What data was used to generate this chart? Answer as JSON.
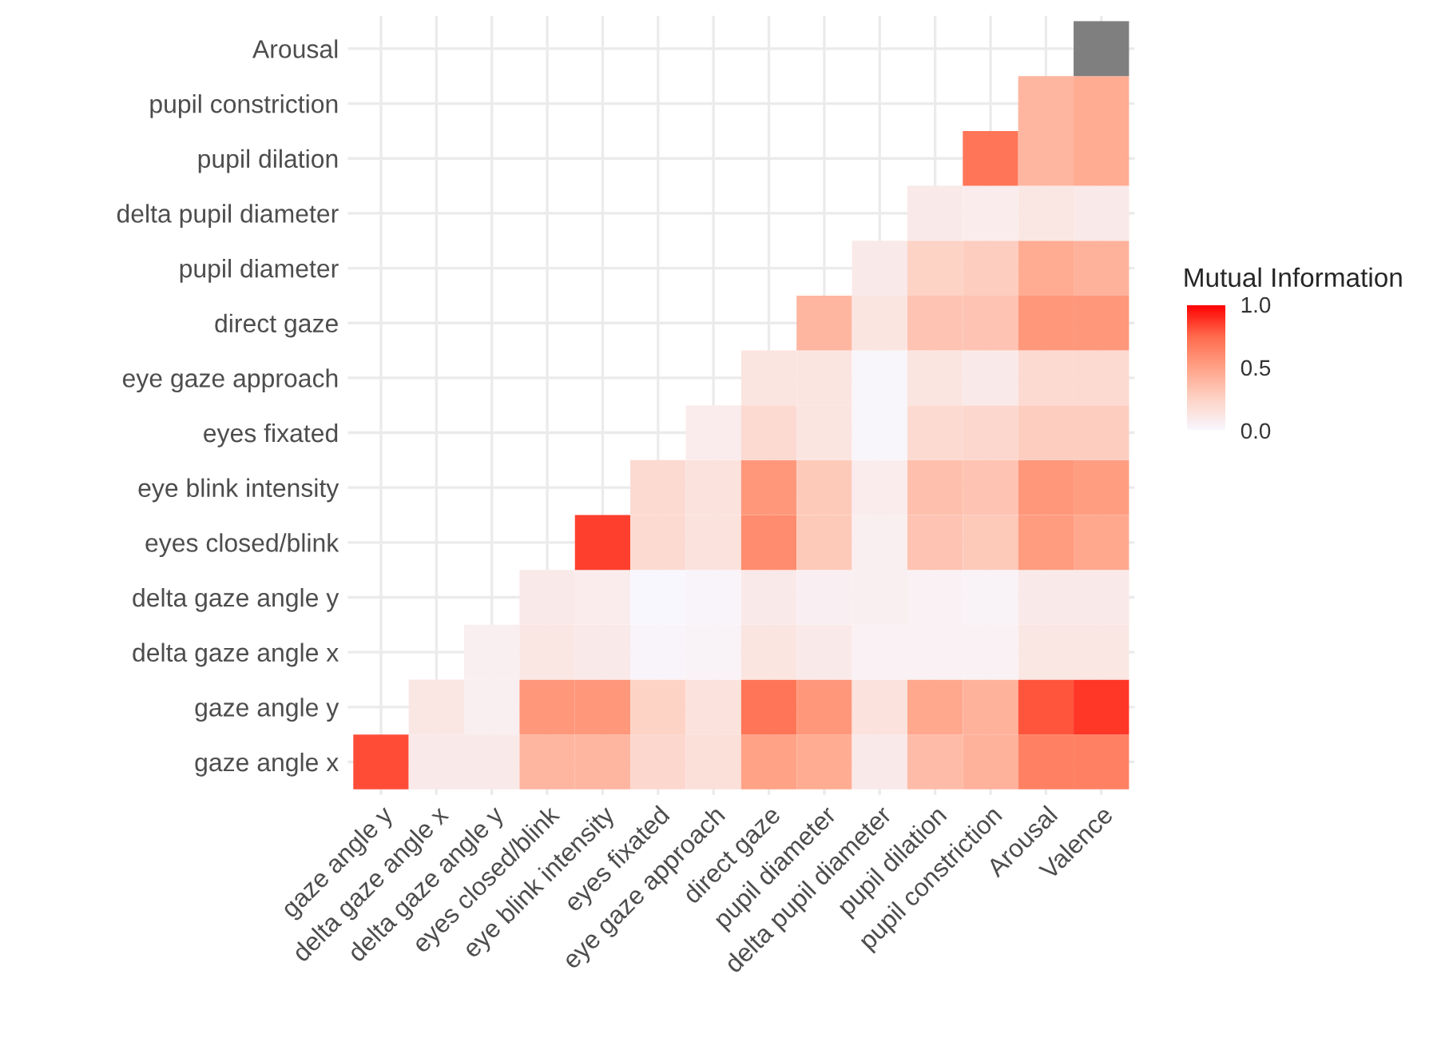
{
  "chart_data": {
    "type": "heatmap",
    "clabel": "Mutual Information",
    "categories": [
      "gaze angle y",
      "delta gaze angle x",
      "delta gaze angle y",
      "eyes closed/blink",
      "eye blink intensity",
      "eyes fixated",
      "eye gaze approach",
      "direct gaze",
      "pupil diameter",
      "delta pupil diameter",
      "pupil dilation",
      "pupil constriction",
      "Arousal",
      "Valence"
    ],
    "y_categories": [
      "Arousal",
      "pupil constriction",
      "pupil dilation",
      "delta pupil diameter",
      "pupil diameter",
      "direct gaze",
      "eye gaze approach",
      "eyes fixated",
      "eye blink intensity",
      "eyes closed/blink",
      "delta gaze angle y",
      "delta gaze angle x",
      "gaze angle y",
      "gaze angle x"
    ],
    "cells": [
      [
        null,
        null,
        null,
        null,
        null,
        null,
        null,
        null,
        null,
        null,
        null,
        null,
        null,
        null
      ],
      [
        null,
        null,
        null,
        null,
        null,
        null,
        null,
        null,
        null,
        null,
        null,
        null,
        0.4,
        0.45
      ],
      [
        null,
        null,
        null,
        null,
        null,
        null,
        null,
        null,
        null,
        null,
        null,
        0.7,
        0.4,
        0.45
      ],
      [
        null,
        null,
        null,
        null,
        null,
        null,
        null,
        null,
        null,
        null,
        0.1,
        0.08,
        0.12,
        0.1
      ],
      [
        null,
        null,
        null,
        null,
        null,
        null,
        null,
        null,
        null,
        0.1,
        0.25,
        0.28,
        0.45,
        0.42
      ],
      [
        null,
        null,
        null,
        null,
        null,
        null,
        null,
        null,
        0.4,
        0.13,
        0.33,
        0.33,
        0.55,
        0.55
      ],
      [
        null,
        null,
        null,
        null,
        null,
        null,
        null,
        0.13,
        0.13,
        0.02,
        0.13,
        0.1,
        0.2,
        0.2
      ],
      [
        null,
        null,
        null,
        null,
        null,
        null,
        0.08,
        0.2,
        0.13,
        0.02,
        0.2,
        0.22,
        0.28,
        0.28
      ],
      [
        null,
        null,
        null,
        null,
        null,
        0.2,
        0.15,
        0.55,
        0.3,
        0.08,
        0.35,
        0.33,
        0.55,
        0.52
      ],
      [
        null,
        null,
        null,
        null,
        0.85,
        0.2,
        0.15,
        0.6,
        0.3,
        0.07,
        0.33,
        0.3,
        0.53,
        0.47
      ],
      [
        null,
        null,
        null,
        0.1,
        0.08,
        0.01,
        0.03,
        0.1,
        0.06,
        0.07,
        0.05,
        0.04,
        0.1,
        0.1
      ],
      [
        null,
        null,
        0.07,
        0.12,
        0.1,
        0.03,
        0.04,
        0.13,
        0.1,
        0.05,
        0.05,
        0.05,
        0.12,
        0.12
      ],
      [
        null,
        0.12,
        0.07,
        0.55,
        0.55,
        0.25,
        0.15,
        0.7,
        0.55,
        0.15,
        0.47,
        0.42,
        0.8,
        0.87
      ],
      [
        0.82,
        0.1,
        0.1,
        0.4,
        0.4,
        0.22,
        0.17,
        0.5,
        0.45,
        0.1,
        0.37,
        0.42,
        0.65,
        0.65
      ]
    ],
    "clim": [
      0,
      1
    ],
    "cticks": [
      {
        "value": 0,
        "label": "0.0"
      },
      {
        "value": 0.5,
        "label": "0.5"
      },
      {
        "value": 1,
        "label": "1.0"
      }
    ],
    "grid": true
  }
}
